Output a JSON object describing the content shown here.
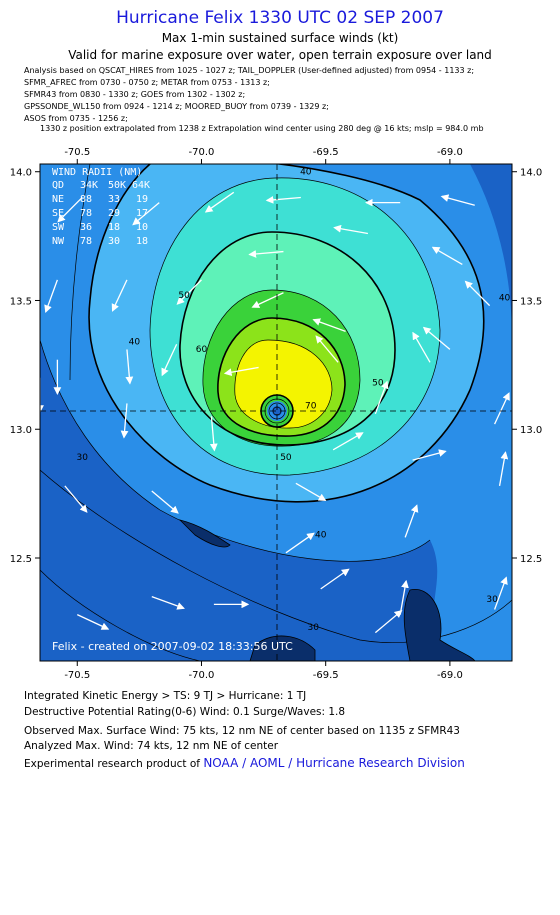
{
  "header": {
    "title": "Hurricane Felix 1330 UTC 02 SEP 2007",
    "subtitle1": "Max 1-min sustained surface winds (kt)",
    "subtitle2": "Valid for marine exposure over water, open terrain exposure over land",
    "analysis_lines": [
      "Analysis based on  QSCAT_HIRES from 1025 - 1027 z;  TAIL_DOPPLER (User-defined adjusted) from 0954 - 1133 z;",
      "SFMR_AFREC from 0730 - 0750 z;  METAR from 0753 - 1313 z;",
      "SFMR43 from 0830 - 1330 z;  GOES from 1302 - 1302 z;",
      "GPSSONDE_WL150 from 0924 - 1214 z;  MOORED_BUOY from 0739 - 1329 z;",
      "ASOS from 0735 - 1256 z;"
    ],
    "position_line": "1330 z position extrapolated from 1238 z Extrapolation wind center using 280 deg @ 16 kts; mslp = 984.0 mb"
  },
  "wind_radii": {
    "title": "WIND RADII (NM)",
    "columns": [
      "QD",
      "34K",
      "50K",
      "64K"
    ],
    "rows": [
      [
        "NE",
        "88",
        "33",
        "19"
      ],
      [
        "SE",
        "78",
        "29",
        "17"
      ],
      [
        "SW",
        "36",
        "18",
        "10"
      ],
      [
        "NW",
        "78",
        "30",
        "18"
      ]
    ]
  },
  "created_label": "Felix - created on 2007-09-02 18:33:56 UTC",
  "footer": {
    "ike": "Integrated Kinetic Energy > TS: 9 TJ   > Hurricane: 1 TJ",
    "dpr": "Destructive Potential Rating(0-6)   Wind: 0.1 Surge/Waves: 1.8",
    "observed": "Observed Max. Surface Wind: 75 kts, 12 nm NE of center based on 1135 z SFMR43",
    "analyzed": "Analyzed Max. Wind: 74 kts, 12 nm NE of center",
    "credit_prefix": "Experimental research product of ",
    "credit_link": "NOAA / AOML / Hurricane Research Division"
  },
  "chart_data": {
    "type": "heatmap",
    "title": "Hurricane Felix 1330 UTC 02 SEP 2007",
    "variable": "Max 1-min sustained surface winds (kt)",
    "x_ticks": [
      -70.5,
      -70.0,
      -69.5,
      -69.0
    ],
    "x_tick_labels": [
      "-70.5",
      "-70.0",
      "-69.5",
      "-69.0"
    ],
    "y_ticks": [
      12.5,
      13.0,
      13.5,
      14.0
    ],
    "y_tick_labels": [
      "12.5",
      "13.0",
      "13.5",
      "14.0"
    ],
    "xlim": [
      -70.65,
      -68.75
    ],
    "ylim": [
      12.1,
      14.03
    ],
    "center": {
      "lon": -69.7,
      "lat": 13.09
    },
    "contour_interval_kt": 5,
    "bold_contours_kt": [
      34,
      50,
      64
    ],
    "contour_labels": [
      {
        "text": "40",
        "lon": -69.58,
        "lat": 13.99
      },
      {
        "text": "50",
        "lon": -70.07,
        "lat": 13.51
      },
      {
        "text": "60",
        "lon": -70.0,
        "lat": 13.3
      },
      {
        "text": "40",
        "lon": -70.27,
        "lat": 13.33
      },
      {
        "text": "30",
        "lon": -70.48,
        "lat": 12.88
      },
      {
        "text": "50",
        "lon": -69.29,
        "lat": 13.17
      },
      {
        "text": "40",
        "lon": -68.78,
        "lat": 13.5
      },
      {
        "text": "50",
        "lon": -69.66,
        "lat": 12.88
      },
      {
        "text": "40",
        "lon": -69.52,
        "lat": 12.58
      },
      {
        "text": "30",
        "lon": -69.55,
        "lat": 12.22
      },
      {
        "text": "30",
        "lon": -68.83,
        "lat": 12.33
      },
      {
        "text": "70",
        "lon": -69.56,
        "lat": 13.08
      }
    ],
    "wind_vectors": [
      {
        "lon": -70.48,
        "lat": 13.9,
        "dir": 225
      },
      {
        "lon": -70.17,
        "lat": 13.88,
        "dir": 230
      },
      {
        "lon": -69.87,
        "lat": 13.92,
        "dir": 235
      },
      {
        "lon": -69.6,
        "lat": 13.9,
        "dir": 265
      },
      {
        "lon": -69.2,
        "lat": 13.88,
        "dir": 270
      },
      {
        "lon": -68.9,
        "lat": 13.87,
        "dir": 285
      },
      {
        "lon": -70.58,
        "lat": 13.58,
        "dir": 200
      },
      {
        "lon": -70.3,
        "lat": 13.58,
        "dir": 205
      },
      {
        "lon": -70.0,
        "lat": 13.58,
        "dir": 225
      },
      {
        "lon": -69.67,
        "lat": 13.69,
        "dir": 265
      },
      {
        "lon": -69.33,
        "lat": 13.76,
        "dir": 280
      },
      {
        "lon": -68.95,
        "lat": 13.64,
        "dir": 300
      },
      {
        "lon": -68.84,
        "lat": 13.48,
        "dir": 315
      },
      {
        "lon": -70.58,
        "lat": 13.27,
        "dir": 180
      },
      {
        "lon": -70.3,
        "lat": 13.31,
        "dir": 175
      },
      {
        "lon": -70.1,
        "lat": 13.33,
        "dir": 205
      },
      {
        "lon": -69.67,
        "lat": 13.53,
        "dir": 245
      },
      {
        "lon": -69.42,
        "lat": 13.38,
        "dir": 290
      },
      {
        "lon": -69.0,
        "lat": 13.31,
        "dir": 310
      },
      {
        "lon": -69.08,
        "lat": 13.26,
        "dir": 330
      },
      {
        "lon": -70.3,
        "lat": 13.1,
        "dir": 185
      },
      {
        "lon": -69.96,
        "lat": 13.05,
        "dir": 175
      },
      {
        "lon": -69.77,
        "lat": 13.24,
        "dir": 260
      },
      {
        "lon": -69.45,
        "lat": 13.26,
        "dir": 320
      },
      {
        "lon": -69.3,
        "lat": 13.06,
        "dir": 20
      },
      {
        "lon": -68.82,
        "lat": 13.02,
        "dir": 25
      },
      {
        "lon": -70.55,
        "lat": 12.78,
        "dir": 140
      },
      {
        "lon": -70.2,
        "lat": 12.76,
        "dir": 130
      },
      {
        "lon": -69.62,
        "lat": 12.79,
        "dir": 120
      },
      {
        "lon": -69.47,
        "lat": 12.92,
        "dir": 60
      },
      {
        "lon": -69.15,
        "lat": 12.88,
        "dir": 75
      },
      {
        "lon": -68.8,
        "lat": 12.78,
        "dir": 10
      },
      {
        "lon": -70.5,
        "lat": 12.28,
        "dir": 115
      },
      {
        "lon": -70.2,
        "lat": 12.35,
        "dir": 110
      },
      {
        "lon": -69.95,
        "lat": 12.32,
        "dir": 90
      },
      {
        "lon": -69.66,
        "lat": 12.52,
        "dir": 55
      },
      {
        "lon": -69.52,
        "lat": 12.38,
        "dir": 55
      },
      {
        "lon": -69.18,
        "lat": 12.58,
        "dir": 20
      },
      {
        "lon": -69.2,
        "lat": 12.28,
        "dir": 10
      },
      {
        "lon": -68.82,
        "lat": 12.3,
        "dir": 20
      },
      {
        "lon": -70.65,
        "lat": 13.2,
        "dir": 180
      },
      {
        "lon": -69.3,
        "lat": 12.21,
        "dir": 50
      }
    ]
  },
  "colors": {
    "title_blue": "#1a1adb",
    "ocean_dark": "#1a62c6",
    "ocean_mid": "#2a8ee8",
    "ocean_light": "#4ab6f4",
    "teal": "#3ee0d4",
    "mint": "#5ef2b8",
    "green": "#3ad23a",
    "lime": "#8ce31a",
    "yellow": "#f4f400",
    "vector": "#ffffff",
    "land": "#0a2e6a"
  }
}
